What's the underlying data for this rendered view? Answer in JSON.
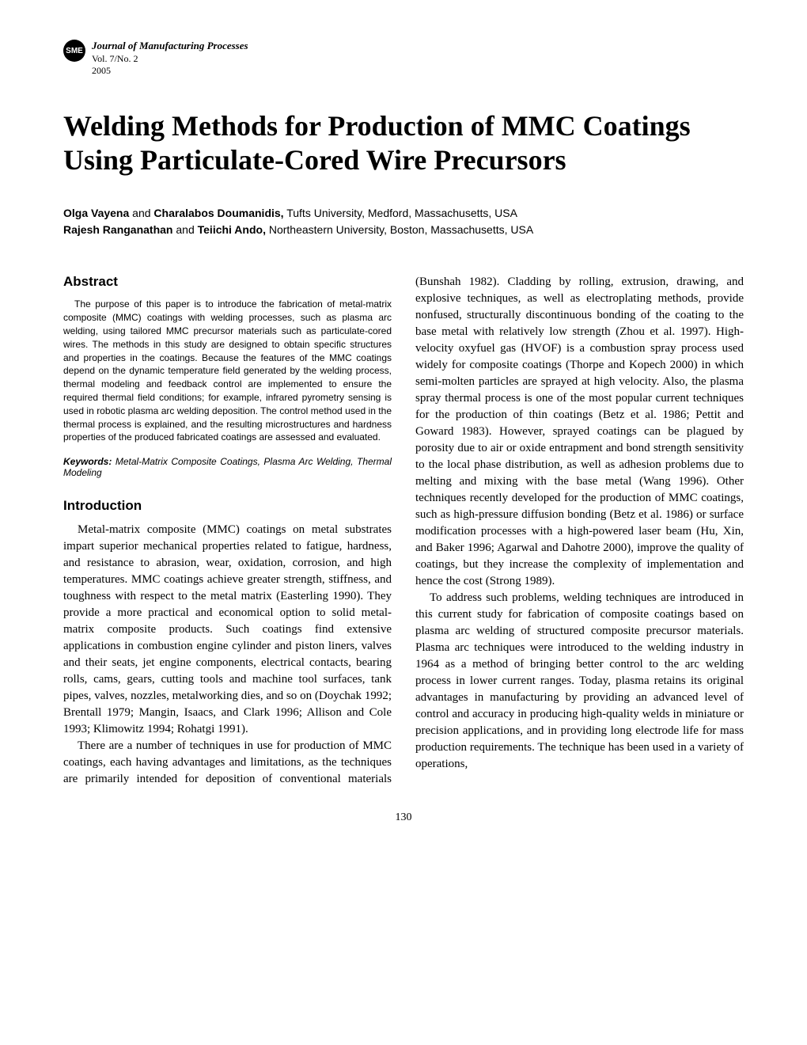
{
  "header": {
    "logo_text": "SME",
    "journal_name": "Journal of Manufacturing Processes",
    "volume": "Vol. 7/No. 2",
    "year": "2005"
  },
  "title": "Welding Methods for Production of MMC Coatings Using Particulate-Cored Wire Precursors",
  "authors": {
    "line1_names": "Olga Vayena",
    "line1_conj": " and ",
    "line1_names2": "Charalabos Doumanidis,",
    "line1_affil": " Tufts University, Medford, Massachusetts, USA",
    "line2_names": "Rajesh Ranganathan",
    "line2_conj": " and ",
    "line2_names2": "Teiichi Ando,",
    "line2_affil": " Northeastern University, Boston, Massachusetts, USA"
  },
  "abstract": {
    "heading": "Abstract",
    "text": "The purpose of this paper is to introduce the fabrication of metal-matrix composite (MMC) coatings with welding processes, such as plasma arc welding, using tailored MMC precursor materials such as particulate-cored wires. The methods in this study are designed to obtain specific structures and properties in the coatings. Because the features of the MMC coatings depend on the dynamic temperature field generated by the welding process, thermal modeling and feedback control are implemented to ensure the required thermal field conditions; for example, infrared pyrometry sensing is used in robotic plasma arc welding deposition. The control method used in the thermal process is explained, and the resulting microstructures and hardness properties of the produced fabricated coatings are assessed and evaluated."
  },
  "keywords": {
    "label": "Keywords:",
    "text": " Metal-Matrix Composite Coatings, Plasma Arc Welding, Thermal Modeling"
  },
  "introduction": {
    "heading": "Introduction",
    "para1": "Metal-matrix composite (MMC) coatings on metal substrates impart superior mechanical properties related to fatigue, hardness, and resistance to abrasion, wear, oxidation, corrosion, and high temperatures. MMC coatings achieve greater strength, stiffness, and toughness with respect to the metal matrix (Easterling 1990). They provide a more practical and economical option to solid metal-matrix composite products. Such coatings find extensive applications in combustion engine cylinder and piston liners, valves and their seats, jet engine components, electrical contacts, bearing rolls, cams, gears, cutting tools and machine tool surfaces, tank pipes, valves, nozzles, metalworking dies, and so on (Doychak 1992; Brentall 1979; Mangin, Isaacs, and Clark 1996; Allison and Cole 1993; Klimowitz 1994; Rohatgi 1991).",
    "para2": "There are a number of techniques in use for production of MMC coatings, each having advantages and limitations, as the techniques are primarily intended for deposition of conventional materials (Bunshah 1982). Cladding by rolling, extrusion, drawing, and explosive techniques, as well as electroplating methods, provide nonfused, structurally discontinuous bonding of the coating to the base metal with relatively low strength (Zhou et al. 1997). High-velocity oxyfuel gas (HVOF) is a combustion spray process used widely for composite coatings (Thorpe and Kopech 2000) in which semi-molten particles are sprayed at high velocity. Also, the plasma spray thermal process is one of the most popular current techniques for the production of thin coatings (Betz et al. 1986; Pettit and Goward 1983). However, sprayed coatings can be plagued by porosity due to air or oxide entrapment and bond strength sensitivity to the local phase distribution, as well as adhesion problems due to melting and mixing with the base metal (Wang 1996). Other techniques recently developed for the production of MMC coatings, such as high-pressure diffusion bonding (Betz et al. 1986) or surface modification processes with a high-powered laser beam (Hu, Xin, and Baker 1996; Agarwal and Dahotre 2000), improve the quality of coatings, but they increase the complexity of implementation and hence the cost (Strong 1989).",
    "para3": "To address such problems, welding techniques are introduced in this current study for fabrication of composite coatings based on plasma arc welding of structured composite precursor materials. Plasma arc techniques were introduced to the welding industry in 1964 as a method of bringing better control to the arc welding process in lower current ranges. Today, plasma retains its original advantages in manufacturing by providing an advanced level of control and accuracy in producing high-quality welds in miniature or precision applications, and in providing long electrode life for mass production requirements. The technique has been used in a variety of operations,"
  },
  "page_number": "130"
}
